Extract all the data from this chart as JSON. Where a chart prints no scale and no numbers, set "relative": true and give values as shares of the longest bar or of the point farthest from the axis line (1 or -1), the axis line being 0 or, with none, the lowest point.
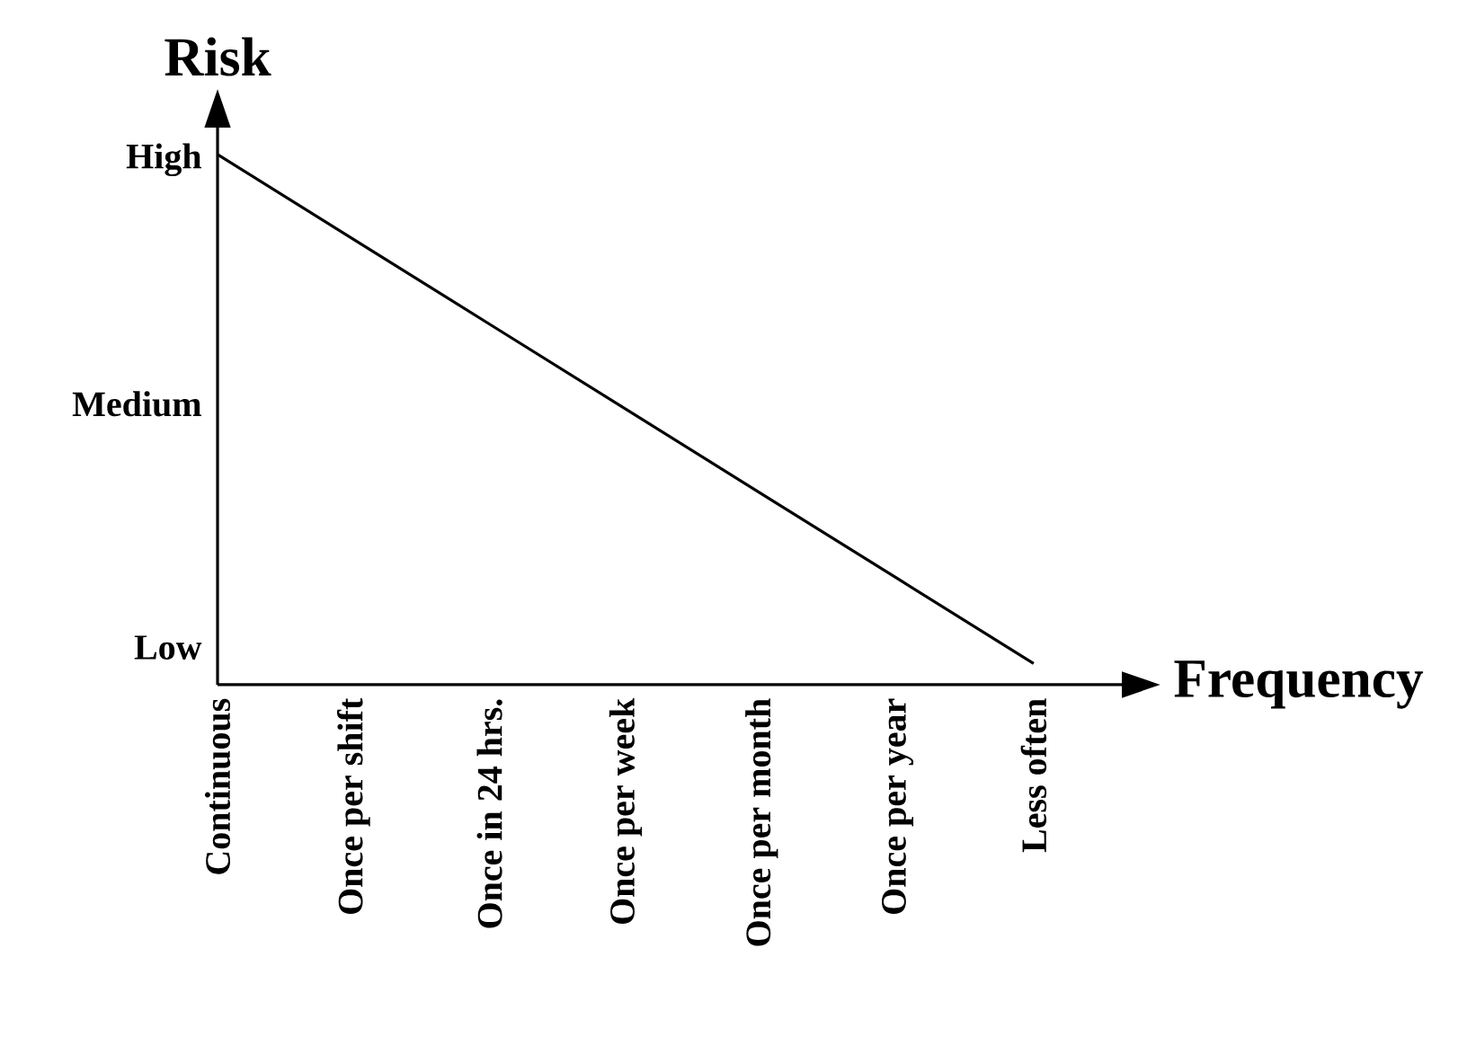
{
  "chart_data": {
    "type": "line",
    "xlabel": "Frequency",
    "ylabel": "Risk",
    "categories": [
      "Continuous",
      "Once per shift",
      "Once in 24 hrs.",
      "Once per week",
      "Once per month",
      "Once per year",
      "Less often"
    ],
    "series": [
      {
        "color": "#000000",
        "values": [
          1,
          0.84,
          0.68,
          0.52,
          0.36,
          0.2,
          0.04
        ]
      }
    ],
    "relative": true,
    "annotations": [
      "Low",
      "Medium",
      "High"
    ],
    "line_style": "solid"
  }
}
